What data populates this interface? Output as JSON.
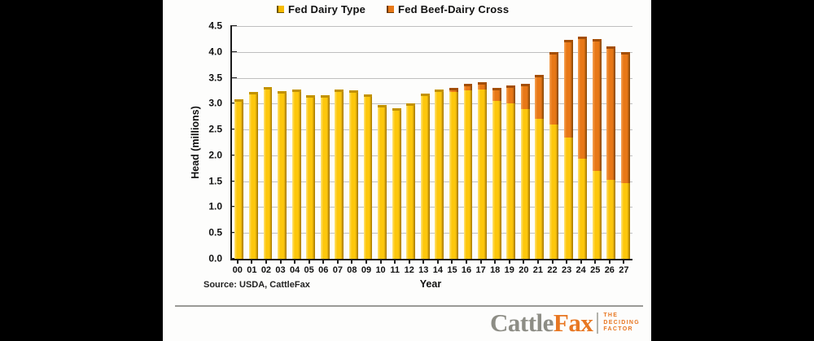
{
  "source_note": "Source: USDA, CattleFax",
  "chart_data": {
    "type": "bar",
    "stacked": true,
    "categories": [
      "00",
      "01",
      "02",
      "03",
      "04",
      "05",
      "06",
      "07",
      "08",
      "09",
      "10",
      "11",
      "12",
      "13",
      "14",
      "15",
      "16",
      "17",
      "18",
      "19",
      "20",
      "21",
      "22",
      "23",
      "24",
      "25",
      "26",
      "27"
    ],
    "series": [
      {
        "name": "Fed Dairy Type",
        "color": "#FDC70C",
        "values": [
          3.08,
          3.22,
          3.32,
          3.24,
          3.28,
          3.16,
          3.17,
          3.28,
          3.25,
          3.18,
          2.98,
          2.91,
          3.0,
          3.2,
          3.28,
          3.22,
          3.25,
          3.27,
          3.05,
          3.0,
          2.9,
          2.7,
          2.6,
          2.35,
          1.93,
          1.7,
          1.52,
          1.47
        ]
      },
      {
        "name": "Fed Beef-Dairy Cross",
        "color": "#E87817",
        "values": [
          0,
          0,
          0,
          0,
          0,
          0,
          0,
          0,
          0,
          0,
          0,
          0,
          0,
          0,
          0,
          0.08,
          0.13,
          0.15,
          0.25,
          0.35,
          0.48,
          0.85,
          1.4,
          1.88,
          2.37,
          2.55,
          2.58,
          2.53
        ]
      }
    ],
    "title": "",
    "xlabel": "Year",
    "ylabel": "Head (millions)",
    "ylim": [
      0,
      4.5
    ],
    "ytick_step": 0.5,
    "yticks": [
      "0.0",
      "0.5",
      "1.0",
      "1.5",
      "2.0",
      "2.5",
      "3.0",
      "3.5",
      "4.0",
      "4.5"
    ],
    "grid": true,
    "legend_position": "top"
  },
  "logo": {
    "brand_part1": "Cattle",
    "brand_part2": "Fax",
    "tagline_lines": [
      "THE",
      "DECIDING",
      "FACTOR"
    ]
  },
  "colors": {
    "background": "#000000",
    "panel": "#FDFDFC",
    "dairy_yellow": "#FDC70C",
    "cross_orange": "#E87817",
    "brand_gray": "#8D8D85",
    "brand_orange": "#E87722",
    "gridline": "#BFBFBF"
  }
}
